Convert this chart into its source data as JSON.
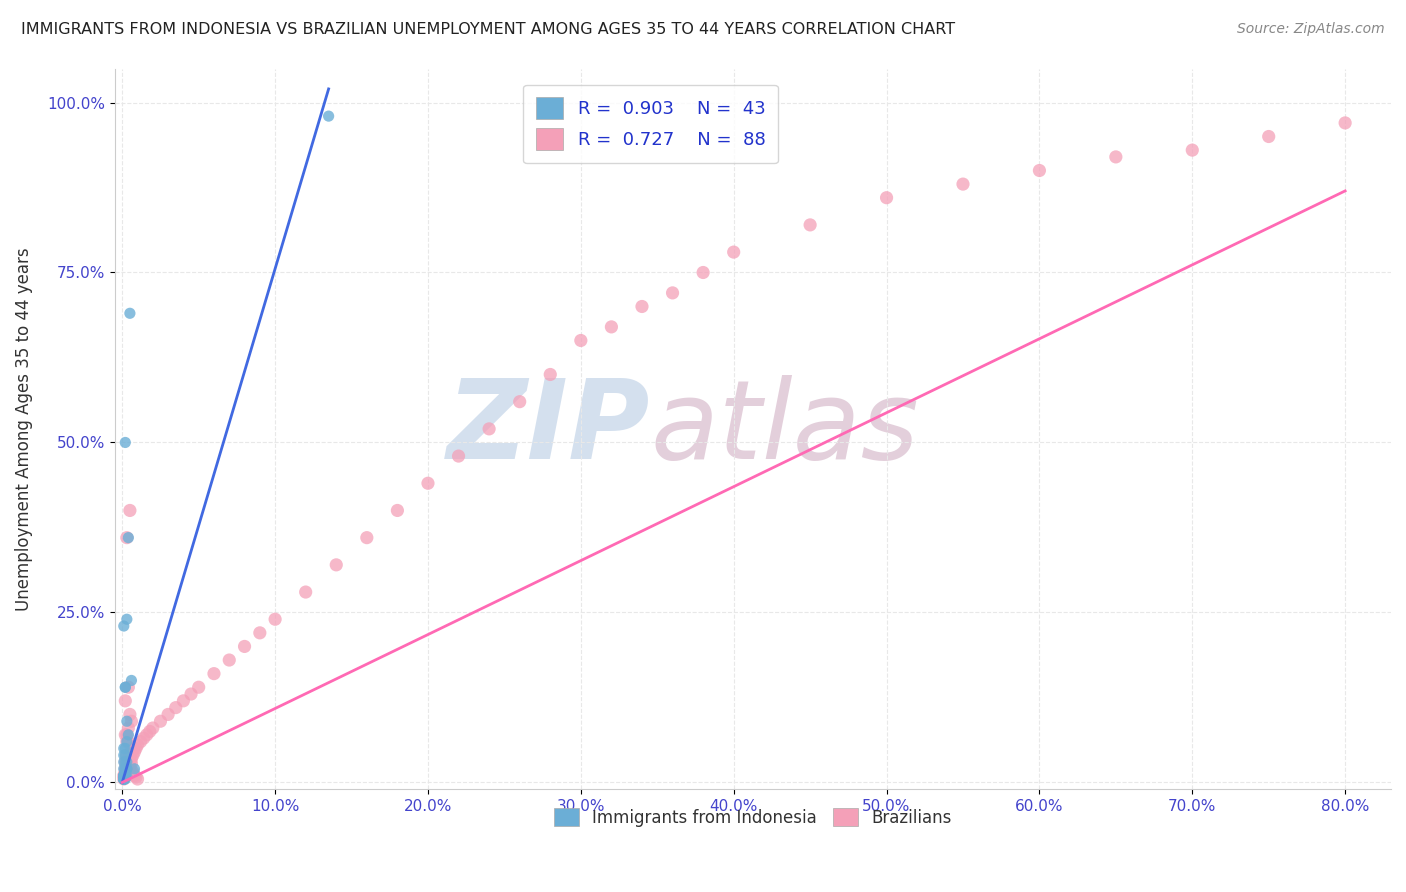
{
  "title": "IMMIGRANTS FROM INDONESIA VS BRAZILIAN UNEMPLOYMENT AMONG AGES 35 TO 44 YEARS CORRELATION CHART",
  "source": "Source: ZipAtlas.com",
  "ylabel": "Unemployment Among Ages 35 to 44 years",
  "x_tick_labels": [
    "0.0%",
    "10.0%",
    "20.0%",
    "30.0%",
    "40.0%",
    "50.0%",
    "60.0%",
    "70.0%",
    "80.0%"
  ],
  "x_tick_vals": [
    0.0,
    0.1,
    0.2,
    0.3,
    0.4,
    0.5,
    0.6,
    0.7,
    0.8
  ],
  "y_tick_labels": [
    "0.0%",
    "25.0%",
    "50.0%",
    "75.0%",
    "100.0%"
  ],
  "y_tick_vals": [
    0.0,
    0.25,
    0.5,
    0.75,
    1.0
  ],
  "xlim": [
    -0.005,
    0.83
  ],
  "ylim": [
    -0.01,
    1.05
  ],
  "blue_scatter_x": [
    0.002,
    0.004,
    0.005,
    0.006,
    0.003,
    0.002,
    0.003,
    0.004,
    0.001,
    0.002,
    0.003,
    0.002,
    0.001,
    0.002,
    0.003,
    0.001,
    0.002,
    0.001,
    0.003,
    0.002,
    0.008,
    0.003,
    0.002,
    0.001,
    0.002,
    0.001,
    0.003,
    0.001,
    0.002,
    0.002,
    0.001,
    0.001,
    0.001,
    0.002,
    0.001,
    0.001,
    0.001,
    0.001,
    0.001,
    0.001,
    0.001,
    0.001,
    0.135
  ],
  "blue_scatter_y": [
    0.5,
    0.36,
    0.69,
    0.15,
    0.24,
    0.14,
    0.09,
    0.07,
    0.23,
    0.14,
    0.06,
    0.05,
    0.05,
    0.04,
    0.03,
    0.04,
    0.03,
    0.03,
    0.02,
    0.02,
    0.02,
    0.02,
    0.02,
    0.02,
    0.01,
    0.01,
    0.01,
    0.01,
    0.01,
    0.01,
    0.01,
    0.01,
    0.005,
    0.005,
    0.005,
    0.005,
    0.005,
    0.005,
    0.005,
    0.005,
    0.005,
    0.005,
    0.98
  ],
  "pink_scatter_x": [
    0.001,
    0.002,
    0.003,
    0.004,
    0.005,
    0.006,
    0.007,
    0.008,
    0.009,
    0.01,
    0.012,
    0.014,
    0.016,
    0.018,
    0.02,
    0.025,
    0.03,
    0.035,
    0.04,
    0.045,
    0.05,
    0.06,
    0.07,
    0.08,
    0.09,
    0.1,
    0.12,
    0.14,
    0.16,
    0.18,
    0.2,
    0.22,
    0.24,
    0.26,
    0.28,
    0.3,
    0.32,
    0.34,
    0.36,
    0.38,
    0.4,
    0.45,
    0.5,
    0.55,
    0.6,
    0.65,
    0.7,
    0.75,
    0.8,
    0.003,
    0.005,
    0.002,
    0.004,
    0.006,
    0.003,
    0.007,
    0.002,
    0.003,
    0.004,
    0.005,
    0.006,
    0.003,
    0.002,
    0.004,
    0.005,
    0.003,
    0.002,
    0.004,
    0.003,
    0.002,
    0.005,
    0.004,
    0.003,
    0.002,
    0.003,
    0.004,
    0.002,
    0.003,
    0.001,
    0.002,
    0.003,
    0.004,
    0.005,
    0.006,
    0.007,
    0.008,
    0.009,
    0.01
  ],
  "pink_scatter_y": [
    0.01,
    0.015,
    0.02,
    0.025,
    0.03,
    0.035,
    0.04,
    0.045,
    0.05,
    0.055,
    0.06,
    0.065,
    0.07,
    0.075,
    0.08,
    0.09,
    0.1,
    0.11,
    0.12,
    0.13,
    0.14,
    0.16,
    0.18,
    0.2,
    0.22,
    0.24,
    0.28,
    0.32,
    0.36,
    0.4,
    0.44,
    0.48,
    0.52,
    0.56,
    0.6,
    0.65,
    0.67,
    0.7,
    0.72,
    0.75,
    0.78,
    0.82,
    0.86,
    0.88,
    0.9,
    0.92,
    0.93,
    0.95,
    0.97,
    0.36,
    0.4,
    0.12,
    0.14,
    0.09,
    0.07,
    0.05,
    0.07,
    0.06,
    0.08,
    0.1,
    0.05,
    0.04,
    0.03,
    0.06,
    0.04,
    0.03,
    0.02,
    0.03,
    0.02,
    0.015,
    0.02,
    0.025,
    0.015,
    0.01,
    0.02,
    0.025,
    0.01,
    0.015,
    0.005,
    0.008,
    0.012,
    0.018,
    0.022,
    0.028,
    0.015,
    0.01,
    0.008,
    0.005
  ],
  "blue_line_x": [
    0.0,
    0.135
  ],
  "blue_line_y": [
    0.0,
    1.02
  ],
  "pink_line_x": [
    0.0,
    0.8
  ],
  "pink_line_y": [
    0.0,
    0.87
  ],
  "blue_color": "#6baed6",
  "pink_color": "#f4a0b8",
  "blue_line_color": "#4169e1",
  "pink_line_color": "#ff69b4",
  "watermark_zip_color": "#b8cce4",
  "watermark_atlas_color": "#c8a0b8",
  "background_color": "#ffffff",
  "grid_color": "#e8e8e8"
}
